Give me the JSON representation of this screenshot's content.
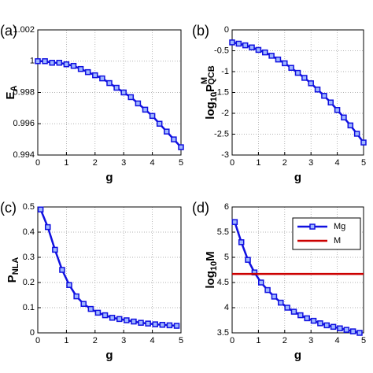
{
  "chart_data": [
    {
      "type": "line",
      "panel": "(a)",
      "xlabel": "g",
      "ylabel": [
        "E",
        "A"
      ],
      "x": [
        0,
        0.25,
        0.5,
        0.75,
        1,
        1.25,
        1.5,
        1.75,
        2,
        2.25,
        2.5,
        2.75,
        3,
        3.25,
        3.5,
        3.75,
        4,
        4.25,
        4.5,
        4.75,
        5
      ],
      "series": [
        {
          "name": "E_A",
          "color": "#1010e0",
          "marker": "square",
          "values": [
            1,
            1,
            0.9999,
            0.9999,
            0.9998,
            0.9997,
            0.9995,
            0.9993,
            0.9991,
            0.9989,
            0.9986,
            0.9983,
            0.998,
            0.9977,
            0.9973,
            0.9969,
            0.9965,
            0.996,
            0.9955,
            0.995,
            0.9945
          ]
        }
      ],
      "xlim": [
        0,
        5
      ],
      "xticks": [
        0,
        1,
        2,
        3,
        4,
        5
      ],
      "ylim": [
        0.994,
        1.002
      ],
      "yticks": [
        0.994,
        0.996,
        0.998,
        1,
        1.002
      ],
      "grid": true
    },
    {
      "type": "line",
      "panel": "(b)",
      "xlabel": "g",
      "ylabel": [
        "log",
        "10",
        "P",
        "M",
        "QCB"
      ],
      "x": [
        0,
        0.25,
        0.5,
        0.75,
        1,
        1.25,
        1.5,
        1.75,
        2,
        2.25,
        2.5,
        2.75,
        3,
        3.25,
        3.5,
        3.75,
        4,
        4.25,
        4.5,
        4.75,
        5
      ],
      "series": [
        {
          "name": "P_QCB",
          "color": "#1010e0",
          "marker": "square",
          "values": [
            -0.3,
            -0.33,
            -0.37,
            -0.42,
            -0.48,
            -0.54,
            -0.62,
            -0.71,
            -0.8,
            -0.91,
            -1.03,
            -1.15,
            -1.28,
            -1.43,
            -1.58,
            -1.74,
            -1.92,
            -2.1,
            -2.29,
            -2.49,
            -2.7
          ]
        }
      ],
      "xlim": [
        0,
        5
      ],
      "xticks": [
        0,
        1,
        2,
        3,
        4,
        5
      ],
      "ylim": [
        -3,
        0
      ],
      "yticks": [
        -3,
        -2.5,
        -2,
        -1.5,
        -1,
        -0.5,
        0
      ],
      "grid": true
    },
    {
      "type": "line",
      "panel": "(c)",
      "xlabel": "g",
      "ylabel": [
        "P",
        "NLA"
      ],
      "x": [
        0.1,
        0.35,
        0.6,
        0.85,
        1.1,
        1.35,
        1.6,
        1.85,
        2.1,
        2.35,
        2.6,
        2.85,
        3.1,
        3.35,
        3.6,
        3.85,
        4.1,
        4.35,
        4.6,
        4.85
      ],
      "series": [
        {
          "name": "P_NLA",
          "color": "#1010e0",
          "marker": "square",
          "values": [
            0.49,
            0.42,
            0.33,
            0.25,
            0.19,
            0.145,
            0.115,
            0.095,
            0.08,
            0.07,
            0.06,
            0.055,
            0.05,
            0.045,
            0.04,
            0.037,
            0.034,
            0.032,
            0.03,
            0.028
          ]
        }
      ],
      "xlim": [
        0,
        5
      ],
      "xticks": [
        0,
        1,
        2,
        3,
        4,
        5
      ],
      "ylim": [
        0,
        0.5
      ],
      "yticks": [
        0,
        0.1,
        0.2,
        0.3,
        0.4,
        0.5
      ],
      "grid": true
    },
    {
      "type": "line",
      "panel": "(d)",
      "xlabel": "g",
      "ylabel": [
        "log",
        "10",
        "M"
      ],
      "x": [
        0.1,
        0.35,
        0.6,
        0.85,
        1.1,
        1.35,
        1.6,
        1.85,
        2.1,
        2.35,
        2.6,
        2.85,
        3.1,
        3.35,
        3.6,
        3.85,
        4.1,
        4.35,
        4.6,
        4.85
      ],
      "series": [
        {
          "name": "Mg",
          "color": "#1010e0",
          "marker": "square",
          "values": [
            5.7,
            5.3,
            4.95,
            4.7,
            4.5,
            4.35,
            4.22,
            4.1,
            4.0,
            3.92,
            3.85,
            3.79,
            3.74,
            3.69,
            3.65,
            3.62,
            3.59,
            3.56,
            3.53,
            3.5
          ]
        },
        {
          "name": "M",
          "color": "#cc0000",
          "x": [
            0,
            5
          ],
          "values": [
            4.67,
            4.67
          ]
        }
      ],
      "legend": "upper right",
      "xlim": [
        0,
        5
      ],
      "xticks": [
        0,
        1,
        2,
        3,
        4,
        5
      ],
      "ylim": [
        3.5,
        6
      ],
      "yticks": [
        3.5,
        4,
        4.5,
        5,
        5.5,
        6
      ],
      "grid": true
    }
  ]
}
